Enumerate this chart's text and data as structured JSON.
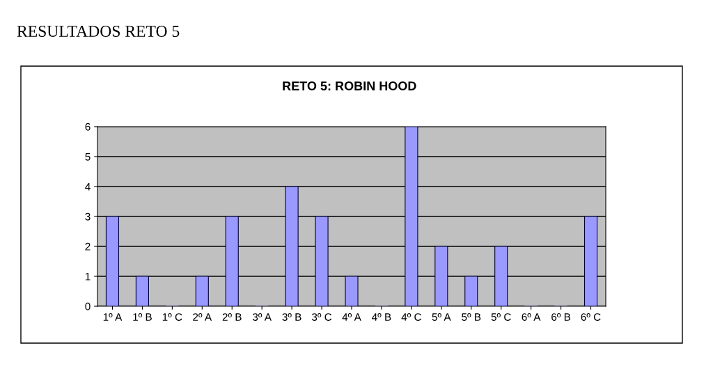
{
  "chart_data": {
    "type": "bar",
    "title": "RESULTADOS RETO 5",
    "subtitle": "RETO 5: ROBIN HOOD",
    "categories": [
      "1º A",
      "1º B",
      "1º C",
      "2º A",
      "2º B",
      "3º A",
      "3º B",
      "3º C",
      "4º A",
      "4º B",
      "4º C",
      "5º A",
      "5º B",
      "5º C",
      "6º A",
      "6º B",
      "6º C"
    ],
    "values": [
      3,
      1,
      0,
      1,
      3,
      0,
      4,
      3,
      1,
      0,
      6,
      2,
      1,
      2,
      0,
      0,
      3
    ],
    "color": "#9999ff",
    "ylim": [
      0,
      6
    ],
    "yticks": [
      0,
      1,
      2,
      3,
      4,
      5,
      6
    ],
    "grid": "y"
  }
}
